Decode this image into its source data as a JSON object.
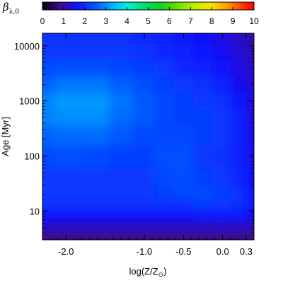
{
  "chart_data": {
    "type": "heatmap",
    "colorbar": {
      "symbol": "β",
      "subscript": "λ,0",
      "ticks": [
        "0",
        "1",
        "2",
        "3",
        "4",
        "5",
        "6",
        "7",
        "8",
        "9",
        "10"
      ],
      "range": [
        0,
        10
      ]
    },
    "xlabel": {
      "prefix": "log(Z/Z",
      "sub": "⊙",
      "suffix": ")"
    },
    "ylabel": {
      "text": "Age",
      "unit": "[Myr]"
    },
    "x_ticks": [
      {
        "value": -2.0,
        "label": "-2.0"
      },
      {
        "value": -1.0,
        "label": "-1.0"
      },
      {
        "value": -0.5,
        "label": "-0.5"
      },
      {
        "value": 0.0,
        "label": "0.0"
      },
      {
        "value": 0.3,
        "label": "0.3"
      }
    ],
    "y_ticks": [
      {
        "value": 10,
        "label": "10"
      },
      {
        "value": 100,
        "label": "100"
      },
      {
        "value": 1000,
        "label": "1000"
      },
      {
        "value": 10000,
        "label": "10000"
      }
    ],
    "xlim": [
      -2.3,
      0.4
    ],
    "ylim": [
      3,
      17000
    ],
    "yscale": "log",
    "grid": false,
    "colors": {
      "low": "#2a0a6e",
      "mid": "#0f1cff",
      "high": "#18c9ff"
    },
    "values": {
      "x": [
        -2.3,
        -2.0,
        -1.6,
        -1.3,
        -1.0,
        -0.75,
        -0.5,
        -0.25,
        0.0,
        0.2,
        0.4
      ],
      "log_age": [
        0.5,
        0.75,
        0.9,
        1.0,
        1.15,
        1.3,
        1.6,
        2.0,
        2.4,
        2.7,
        3.0,
        3.3,
        3.6,
        3.9,
        4.23
      ],
      "beta": [
        [
          0.8,
          0.8,
          0.8,
          0.8,
          0.8,
          0.8,
          0.8,
          0.8,
          0.8,
          0.8,
          0.8
        ],
        [
          1.2,
          1.2,
          1.2,
          1.2,
          1.2,
          1.2,
          1.2,
          1.2,
          1.2,
          1.2,
          1.1
        ],
        [
          1.6,
          1.6,
          1.6,
          1.6,
          1.6,
          1.6,
          1.6,
          1.7,
          1.7,
          1.7,
          1.5
        ],
        [
          1.8,
          1.8,
          1.8,
          1.8,
          1.8,
          1.8,
          1.8,
          1.9,
          1.9,
          1.8,
          1.6
        ],
        [
          2.0,
          2.0,
          2.0,
          2.0,
          2.0,
          2.0,
          2.0,
          2.2,
          2.1,
          2.0,
          1.7
        ],
        [
          2.1,
          2.1,
          2.1,
          2.1,
          2.1,
          2.2,
          2.3,
          2.3,
          2.2,
          2.0,
          1.7
        ],
        [
          2.1,
          2.1,
          2.1,
          2.1,
          2.1,
          2.3,
          2.4,
          2.2,
          2.1,
          1.9,
          1.6
        ],
        [
          2.3,
          2.4,
          2.3,
          2.2,
          2.2,
          2.4,
          2.4,
          2.1,
          2.0,
          1.8,
          1.5
        ],
        [
          2.6,
          2.7,
          2.7,
          2.5,
          2.3,
          2.3,
          2.3,
          2.2,
          2.1,
          1.8,
          1.5
        ],
        [
          2.9,
          3.0,
          3.0,
          2.7,
          2.5,
          2.3,
          2.2,
          2.2,
          2.1,
          1.8,
          1.4
        ],
        [
          2.9,
          3.1,
          3.1,
          2.8,
          2.5,
          2.3,
          2.2,
          2.1,
          2.0,
          1.7,
          1.4
        ],
        [
          2.6,
          2.8,
          2.8,
          2.6,
          2.4,
          2.2,
          2.1,
          2.0,
          1.8,
          1.5,
          1.3
        ],
        [
          2.3,
          2.4,
          2.4,
          2.3,
          2.2,
          2.1,
          1.9,
          1.8,
          1.7,
          1.4,
          1.2
        ],
        [
          2.1,
          2.1,
          2.1,
          2.1,
          2.0,
          1.9,
          1.8,
          1.7,
          1.5,
          1.3,
          1.1
        ],
        [
          2.0,
          2.0,
          2.0,
          2.0,
          1.9,
          1.8,
          1.7,
          1.6,
          1.4,
          1.2,
          1.0
        ]
      ]
    }
  }
}
